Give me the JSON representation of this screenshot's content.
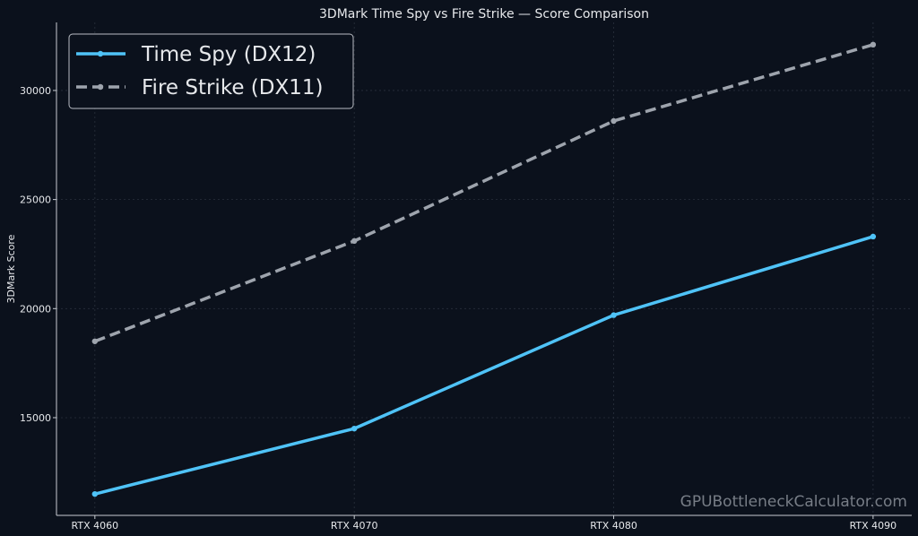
{
  "chart_data": {
    "type": "line",
    "title": "3DMark Time Spy vs Fire Strike — Score Comparison",
    "xlabel": "",
    "ylabel": "3DMark Score",
    "categories": [
      "RTX 4060",
      "RTX 4070",
      "RTX 4080",
      "RTX 4090"
    ],
    "yticks": [
      15000,
      20000,
      25000,
      30000
    ],
    "ylim": [
      10520,
      33120
    ],
    "grid": true,
    "legend_position": "top-left",
    "series": [
      {
        "name": "Time Spy (DX12)",
        "values": [
          11500,
          14500,
          19700,
          23300
        ],
        "color": "#4fc3f7",
        "style": "solid"
      },
      {
        "name": "Fire Strike (DX11)",
        "values": [
          18500,
          23100,
          28600,
          32100
        ],
        "color": "#9ea4ad",
        "style": "dashed"
      }
    ],
    "watermark": "GPUBottleneckCalculator.com",
    "colors": {
      "background": "#0b111c",
      "axis": "#c8ccd2",
      "grid": "#2a313d",
      "text": "#e6e8eb"
    }
  }
}
